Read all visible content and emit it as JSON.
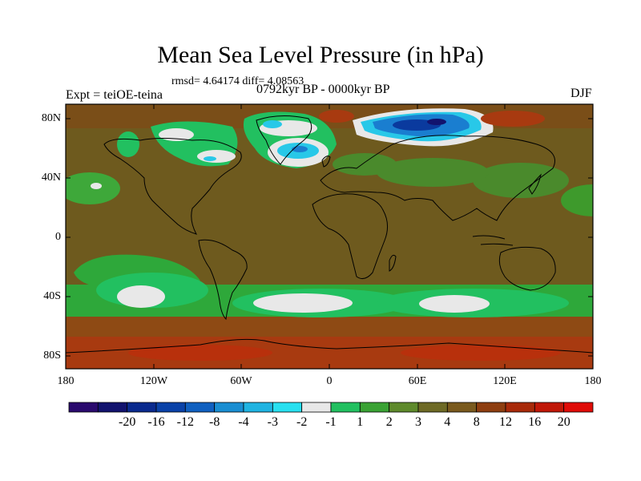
{
  "title": "Mean Sea Level Pressure (in hPa)",
  "stats": "rmsd= 4.64174 diff= 4.08563",
  "experiment": "Expt = teiOE-teina",
  "period": "0792kyr BP - 0000kyr BP",
  "season": "DJF",
  "lat_labels": [
    "80N",
    "40N",
    "0",
    "40S",
    "80S"
  ],
  "lon_labels": [
    "180",
    "120W",
    "60W",
    "0",
    "60E",
    "120E",
    "180"
  ],
  "colorbar": {
    "colors": [
      "#2a0a6e",
      "#12136e",
      "#0a2a8e",
      "#0a42a8",
      "#1060c0",
      "#1a8ed2",
      "#20b4e2",
      "#28e0f0",
      "#e8e8e8",
      "#22c060",
      "#3aa234",
      "#5e8a2c",
      "#6e6a26",
      "#7a5a1e",
      "#8e3e10",
      "#a82a0a",
      "#c01808",
      "#e00c08"
    ],
    "labels": [
      "-20",
      "-16",
      "-12",
      "-8",
      "-4",
      "-3",
      "-2",
      "-1",
      "1",
      "2",
      "3",
      "4",
      "8",
      "12",
      "16",
      "20"
    ]
  },
  "map_fields": {
    "background": "#6e5a1e",
    "band_orange": "#8e4a14",
    "band_red": "#a83a10",
    "green_dark": "#3e9a2c",
    "green_light": "#22c060",
    "grey": "#e8e8e8",
    "blue_cyan": "#28c8e8",
    "blue_mid": "#1a7ed0",
    "blue_dark": "#0a3a9e"
  }
}
